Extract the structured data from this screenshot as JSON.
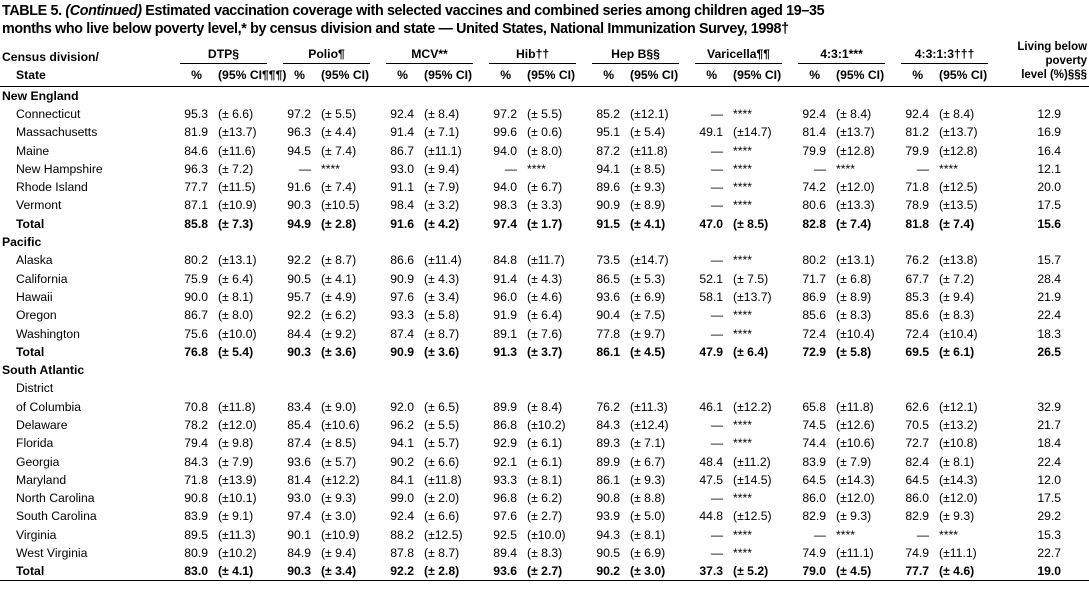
{
  "header": {
    "table_label": "TABLE 5.",
    "continued": "(Continued)",
    "title_line1": "Estimated vaccination coverage with selected vaccines and combined series among children aged 19–35",
    "title_line2": "months who live below poverty level,* by census division and state — United States, National Immunization Survey, 1998†"
  },
  "table": {
    "stub_head": [
      "Census division/",
      "State"
    ],
    "groups": [
      "DTP§",
      "Polio¶",
      "MCV**",
      "Hib††",
      "Hep B§§",
      "Varicella¶¶",
      "4:3:1***",
      "4:3:1:3†††"
    ],
    "poverty_head": [
      "Living below",
      "poverty",
      "level (%)§§§"
    ],
    "subheaders": [
      "%",
      "(95% CI¶¶¶)",
      "%",
      "(95% CI)",
      "%",
      "(95% CI)",
      "%",
      "(95% CI)",
      "%",
      "(95% CI)",
      "%",
      "(95% CI)",
      "%",
      "(95% CI)",
      "%",
      "(95% CI)"
    ],
    "sections": [
      {
        "name": "New England",
        "rows": [
          [
            "Connecticut",
            "95.3",
            "(± 6.6)",
            "97.2",
            "(± 5.5)",
            "92.4",
            "(± 8.4)",
            "97.2",
            "(± 5.5)",
            "85.2",
            "(±12.1)",
            "—",
            "****",
            "92.4",
            "(± 8.4)",
            "92.4",
            "(± 8.4)",
            "12.9"
          ],
          [
            "Massachusetts",
            "81.9",
            "(±13.7)",
            "96.3",
            "(± 4.4)",
            "91.4",
            "(± 7.1)",
            "99.6",
            "(± 0.6)",
            "95.1",
            "(± 5.4)",
            "49.1",
            "(±14.7)",
            "81.4",
            "(±13.7)",
            "81.2",
            "(±13.7)",
            "16.9"
          ],
          [
            "Maine",
            "84.6",
            "(±11.6)",
            "94.5",
            "(± 7.4)",
            "86.7",
            "(±11.1)",
            "94.0",
            "(± 8.0)",
            "87.2",
            "(±11.8)",
            "—",
            "****",
            "79.9",
            "(±12.8)",
            "79.9",
            "(±12.8)",
            "16.4"
          ],
          [
            "New Hampshire",
            "96.3",
            "(± 7.2)",
            "—",
            "****",
            "93.0",
            "(± 9.4)",
            "—",
            "****",
            "94.1",
            "(± 8.5)",
            "—",
            "****",
            "—",
            "****",
            "—",
            "****",
            "12.1"
          ],
          [
            "Rhode Island",
            "77.7",
            "(±11.5)",
            "91.6",
            "(± 7.4)",
            "91.1",
            "(± 7.9)",
            "94.0",
            "(± 6.7)",
            "89.6",
            "(± 9.3)",
            "—",
            "****",
            "74.2",
            "(±12.0)",
            "71.8",
            "(±12.5)",
            "20.0"
          ],
          [
            "Vermont",
            "87.1",
            "(±10.9)",
            "90.3",
            "(±10.5)",
            "98.4",
            "(± 3.2)",
            "98.3",
            "(± 3.3)",
            "90.9",
            "(± 8.9)",
            "—",
            "****",
            "80.6",
            "(±13.3)",
            "78.9",
            "(±13.5)",
            "17.5"
          ],
          [
            "Total",
            "85.8",
            "(± 7.3)",
            "94.9",
            "(± 2.8)",
            "91.6",
            "(± 4.2)",
            "97.4",
            "(± 1.7)",
            "91.5",
            "(± 4.1)",
            "47.0",
            "(± 8.5)",
            "82.8",
            "(± 7.4)",
            "81.8",
            "(± 7.4)",
            "15.6"
          ]
        ]
      },
      {
        "name": "Pacific",
        "rows": [
          [
            "Alaska",
            "80.2",
            "(±13.1)",
            "92.2",
            "(± 8.7)",
            "86.6",
            "(±11.4)",
            "84.8",
            "(±11.7)",
            "73.5",
            "(±14.7)",
            "—",
            "****",
            "80.2",
            "(±13.1)",
            "76.2",
            "(±13.8)",
            "15.7"
          ],
          [
            "California",
            "75.9",
            "(± 6.4)",
            "90.5",
            "(± 4.1)",
            "90.9",
            "(± 4.3)",
            "91.4",
            "(± 4.3)",
            "86.5",
            "(± 5.3)",
            "52.1",
            "(± 7.5)",
            "71.7",
            "(± 6.8)",
            "67.7",
            "(± 7.2)",
            "28.4"
          ],
          [
            "Hawaii",
            "90.0",
            "(± 8.1)",
            "95.7",
            "(± 4.9)",
            "97.6",
            "(± 3.4)",
            "96.0",
            "(± 4.6)",
            "93.6",
            "(± 6.9)",
            "58.1",
            "(±13.7)",
            "86.9",
            "(± 8.9)",
            "85.3",
            "(± 9.4)",
            "21.9"
          ],
          [
            "Oregon",
            "86.7",
            "(± 8.0)",
            "92.2",
            "(± 6.2)",
            "93.3",
            "(± 5.8)",
            "91.9",
            "(± 6.4)",
            "90.4",
            "(± 7.5)",
            "—",
            "****",
            "85.6",
            "(± 8.3)",
            "85.6",
            "(± 8.3)",
            "22.4"
          ],
          [
            "Washington",
            "75.6",
            "(±10.0)",
            "84.4",
            "(± 9.2)",
            "87.4",
            "(± 8.7)",
            "89.1",
            "(± 7.6)",
            "77.8",
            "(± 9.7)",
            "—",
            "****",
            "72.4",
            "(±10.4)",
            "72.4",
            "(±10.4)",
            "18.3"
          ],
          [
            "Total",
            "76.8",
            "(± 5.4)",
            "90.3",
            "(± 3.6)",
            "90.9",
            "(± 3.6)",
            "91.3",
            "(± 3.7)",
            "86.1",
            "(± 4.5)",
            "47.9",
            "(± 6.4)",
            "72.9",
            "(± 5.8)",
            "69.5",
            "(± 6.1)",
            "26.5"
          ]
        ]
      },
      {
        "name": "South Atlantic",
        "rows": [
          [
            "District"
          ],
          [
            "of Columbia",
            "70.8",
            "(±11.8)",
            "83.4",
            "(± 9.0)",
            "92.0",
            "(± 6.5)",
            "89.9",
            "(± 8.4)",
            "76.2",
            "(±11.3)",
            "46.1",
            "(±12.2)",
            "65.8",
            "(±11.8)",
            "62.6",
            "(±12.1)",
            "32.9"
          ],
          [
            "Delaware",
            "78.2",
            "(±12.0)",
            "85.4",
            "(±10.6)",
            "96.2",
            "(± 5.5)",
            "86.8",
            "(±10.2)",
            "84.3",
            "(±12.4)",
            "—",
            "****",
            "74.5",
            "(±12.6)",
            "70.5",
            "(±13.2)",
            "21.7"
          ],
          [
            "Florida",
            "79.4",
            "(± 9.8)",
            "87.4",
            "(± 8.5)",
            "94.1",
            "(± 5.7)",
            "92.9",
            "(± 6.1)",
            "89.3",
            "(± 7.1)",
            "—",
            "****",
            "74.4",
            "(±10.6)",
            "72.7",
            "(±10.8)",
            "18.4"
          ],
          [
            "Georgia",
            "84.3",
            "(± 7.9)",
            "93.6",
            "(± 5.7)",
            "90.2",
            "(± 6.6)",
            "92.1",
            "(± 6.1)",
            "89.9",
            "(± 6.7)",
            "48.4",
            "(±11.2)",
            "83.9",
            "(± 7.9)",
            "82.4",
            "(± 8.1)",
            "22.4"
          ],
          [
            "Maryland",
            "71.8",
            "(±13.9)",
            "81.4",
            "(±12.2)",
            "84.1",
            "(±11.8)",
            "93.3",
            "(± 8.1)",
            "86.1",
            "(± 9.3)",
            "47.5",
            "(±14.5)",
            "64.5",
            "(±14.3)",
            "64.5",
            "(±14.3)",
            "12.0"
          ],
          [
            "North Carolina",
            "90.8",
            "(±10.1)",
            "93.0",
            "(± 9.3)",
            "99.0",
            "(± 2.0)",
            "96.8",
            "(± 6.2)",
            "90.8",
            "(± 8.8)",
            "—",
            "****",
            "86.0",
            "(±12.0)",
            "86.0",
            "(±12.0)",
            "17.5"
          ],
          [
            "South Carolina",
            "83.9",
            "(± 9.1)",
            "97.4",
            "(± 3.0)",
            "92.4",
            "(± 6.6)",
            "97.6",
            "(± 2.7)",
            "93.9",
            "(± 5.0)",
            "44.8",
            "(±12.5)",
            "82.9",
            "(± 9.3)",
            "82.9",
            "(± 9.3)",
            "29.2"
          ],
          [
            "Virginia",
            "89.5",
            "(±11.3)",
            "90.1",
            "(±10.9)",
            "88.2",
            "(±12.5)",
            "92.5",
            "(±10.0)",
            "94.3",
            "(± 8.1)",
            "—",
            "****",
            "—",
            "****",
            "—",
            "****",
            "15.3"
          ],
          [
            "West Virginia",
            "80.9",
            "(±10.2)",
            "84.9",
            "(± 9.4)",
            "87.8",
            "(± 8.7)",
            "89.4",
            "(± 8.3)",
            "90.5",
            "(± 6.9)",
            "—",
            "****",
            "74.9",
            "(±11.1)",
            "74.9",
            "(±11.1)",
            "22.7"
          ],
          [
            "Total",
            "83.0",
            "(± 4.1)",
            "90.3",
            "(± 3.4)",
            "92.2",
            "(± 2.8)",
            "93.6",
            "(± 2.7)",
            "90.2",
            "(± 3.0)",
            "37.3",
            "(± 5.2)",
            "79.0",
            "(± 4.5)",
            "77.7",
            "(± 4.6)",
            "19.0"
          ]
        ]
      }
    ]
  }
}
